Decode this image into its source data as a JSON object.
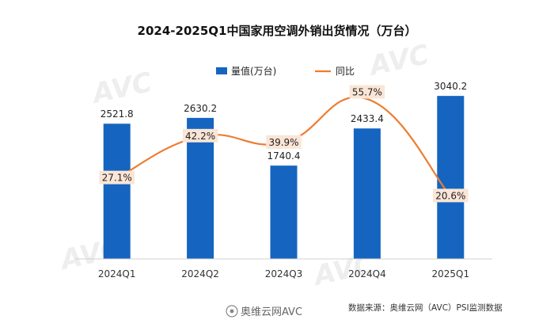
{
  "chart_data": {
    "type": "bar",
    "title": "2024-2025Q1中国家用空调外销出货情况（万台）",
    "categories": [
      "2024Q1",
      "2024Q2",
      "2024Q3",
      "2024Q4",
      "2025Q1"
    ],
    "series": [
      {
        "name": "量值(万台)",
        "type": "bar",
        "values": [
          2521.8,
          2630.2,
          1740.4,
          2433.4,
          3040.2
        ],
        "value_labels": [
          "2521.8",
          "2630.2",
          "1740.4",
          "2433.4",
          "3040.2"
        ],
        "color": "#1565C0"
      },
      {
        "name": "同比",
        "type": "line",
        "smooth": true,
        "values": [
          27.1,
          42.2,
          39.9,
          55.7,
          20.6
        ],
        "value_labels": [
          "27.1%",
          "42.2%",
          "39.9%",
          "55.7%",
          "20.6%"
        ],
        "color": "#ED7D31"
      }
    ],
    "legend_position": "top-center",
    "grid": false
  },
  "source": "数据来源：奥维云网（AVC）PSI监测数据",
  "watermark": "奥维云网AVC",
  "colors": {
    "bar": "#1565C0",
    "line": "#ED7D31",
    "label_bg": "#FBE5D6"
  }
}
